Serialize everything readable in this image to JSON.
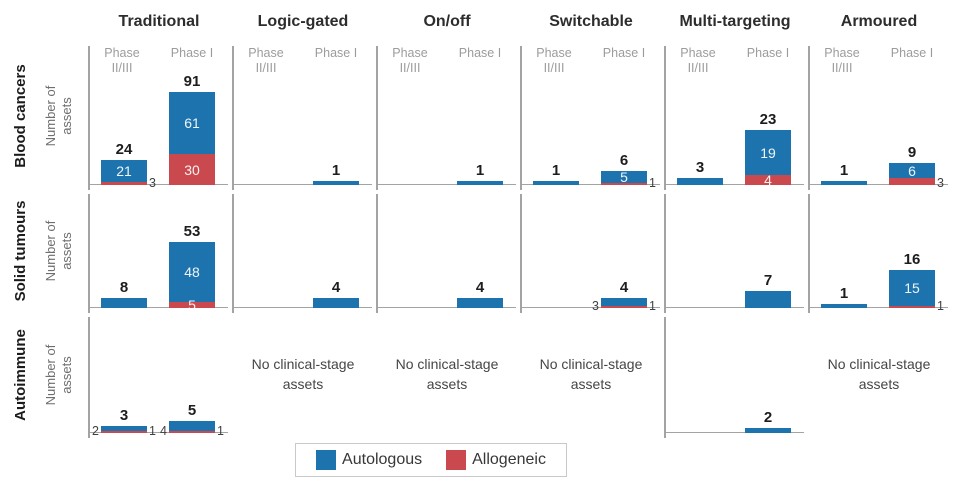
{
  "chart_data": {
    "type": "bar",
    "stacked": true,
    "columns": [
      "Traditional",
      "Logic-gated",
      "On/off",
      "Switchable",
      "Multi-targeting",
      "Armoured"
    ],
    "rows": [
      "Blood cancers",
      "Solid tumours",
      "Autoimmune"
    ],
    "y_axis_label": "Number of assets",
    "phase_labels": [
      "Phase II/III",
      "Phase I"
    ],
    "empty_cell_text": "No clinical-stage assets",
    "legend": [
      {
        "name": "Autologous",
        "color": "#1c73ae"
      },
      {
        "name": "Allogeneic",
        "color": "#c9494e"
      }
    ],
    "cells": [
      {
        "row": "Blood cancers",
        "column": "Traditional",
        "bars": [
          {
            "phase": "Phase II/III",
            "slot": 0,
            "total": 24,
            "autologous": 21,
            "allogeneic": 3,
            "autologous_label": "inside",
            "allogeneic_label": "right"
          },
          {
            "phase": "Phase I",
            "slot": 1,
            "total": 91,
            "autologous": 61,
            "allogeneic": 30,
            "autologous_label": "inside",
            "allogeneic_label": "inside"
          }
        ]
      },
      {
        "row": "Blood cancers",
        "column": "Logic-gated",
        "bars": [
          {
            "phase": "Phase I",
            "slot": 1,
            "total": 1,
            "autologous": 1,
            "allogeneic": 0,
            "autologous_label": null,
            "allogeneic_label": null
          }
        ]
      },
      {
        "row": "Blood cancers",
        "column": "On/off",
        "bars": [
          {
            "phase": "Phase I",
            "slot": 1,
            "total": 1,
            "autologous": 1,
            "allogeneic": 0,
            "autologous_label": null,
            "allogeneic_label": null
          }
        ]
      },
      {
        "row": "Blood cancers",
        "column": "Switchable",
        "bars": [
          {
            "phase": "Phase II/III",
            "slot": 0,
            "total": 1,
            "autologous": 1,
            "allogeneic": 0,
            "autologous_label": null,
            "allogeneic_label": null
          },
          {
            "phase": "Phase I",
            "slot": 1,
            "total": 6,
            "autologous": 5,
            "allogeneic": 1,
            "autologous_label": "inside",
            "allogeneic_label": "right"
          }
        ]
      },
      {
        "row": "Blood cancers",
        "column": "Multi-targeting",
        "bars": [
          {
            "phase": "Phase II/III",
            "slot": 0,
            "total": 3,
            "autologous": 3,
            "allogeneic": 0,
            "autologous_label": null,
            "allogeneic_label": null
          },
          {
            "phase": "Phase I",
            "slot": 1,
            "total": 23,
            "autologous": 19,
            "allogeneic": 4,
            "autologous_label": "inside",
            "allogeneic_label": "inside"
          }
        ]
      },
      {
        "row": "Blood cancers",
        "column": "Armoured",
        "bars": [
          {
            "phase": "Phase II/III",
            "slot": 0,
            "total": 1,
            "autologous": 1,
            "allogeneic": 0,
            "autologous_label": null,
            "allogeneic_label": null
          },
          {
            "phase": "Phase I",
            "slot": 1,
            "total": 9,
            "autologous": 6,
            "allogeneic": 3,
            "autologous_label": "inside",
            "allogeneic_label": "right"
          }
        ]
      },
      {
        "row": "Solid tumours",
        "column": "Traditional",
        "bars": [
          {
            "phase": "Phase II/III",
            "slot": 0,
            "total": 8,
            "autologous": 8,
            "allogeneic": 0,
            "autologous_label": null,
            "allogeneic_label": null
          },
          {
            "phase": "Phase I",
            "slot": 1,
            "total": 53,
            "autologous": 48,
            "allogeneic": 5,
            "autologous_label": "inside",
            "allogeneic_label": "inside"
          }
        ]
      },
      {
        "row": "Solid tumours",
        "column": "Logic-gated",
        "bars": [
          {
            "phase": "Phase I",
            "slot": 1,
            "total": 4,
            "autologous": 4,
            "allogeneic": 0,
            "autologous_label": null,
            "allogeneic_label": null
          }
        ]
      },
      {
        "row": "Solid tumours",
        "column": "On/off",
        "bars": [
          {
            "phase": "Phase I",
            "slot": 1,
            "total": 4,
            "autologous": 4,
            "allogeneic": 0,
            "autologous_label": null,
            "allogeneic_label": null
          }
        ]
      },
      {
        "row": "Solid tumours",
        "column": "Switchable",
        "bars": [
          {
            "phase": "Phase I",
            "slot": 1,
            "total": 4,
            "autologous": 3,
            "allogeneic": 1,
            "autologous_label": "left",
            "allogeneic_label": "right"
          }
        ]
      },
      {
        "row": "Solid tumours",
        "column": "Multi-targeting",
        "bars": [
          {
            "phase": "Phase I",
            "slot": 1,
            "total": 7,
            "autologous": 7,
            "allogeneic": 0,
            "autologous_label": null,
            "allogeneic_label": null
          }
        ]
      },
      {
        "row": "Solid tumours",
        "column": "Armoured",
        "bars": [
          {
            "phase": "Phase II/III",
            "slot": 0,
            "total": 1,
            "autologous": 1,
            "allogeneic": 0,
            "autologous_label": null,
            "allogeneic_label": null
          },
          {
            "phase": "Phase I",
            "slot": 1,
            "total": 16,
            "autologous": 15,
            "allogeneic": 1,
            "autologous_label": "inside",
            "allogeneic_label": "right"
          }
        ]
      },
      {
        "row": "Autoimmune",
        "column": "Traditional",
        "bars": [
          {
            "phase": "Phase II/III",
            "slot": 0,
            "total": 3,
            "autologous": 2,
            "allogeneic": 1,
            "autologous_label": "left",
            "allogeneic_label": "right"
          },
          {
            "phase": "Phase I",
            "slot": 1,
            "total": 5,
            "autologous": 4,
            "allogeneic": 1,
            "autologous_label": "left",
            "allogeneic_label": "right"
          }
        ]
      },
      {
        "row": "Autoimmune",
        "column": "Logic-gated",
        "no_assets": true
      },
      {
        "row": "Autoimmune",
        "column": "On/off",
        "no_assets": true
      },
      {
        "row": "Autoimmune",
        "column": "Switchable",
        "no_assets": true
      },
      {
        "row": "Autoimmune",
        "column": "Multi-targeting",
        "bars": [
          {
            "phase": "Phase I",
            "slot": 1,
            "total": 2,
            "autologous": 2,
            "allogeneic": 0,
            "autologous_label": null,
            "allogeneic_label": null
          }
        ]
      },
      {
        "row": "Autoimmune",
        "column": "Armoured",
        "no_assets": true
      }
    ]
  }
}
